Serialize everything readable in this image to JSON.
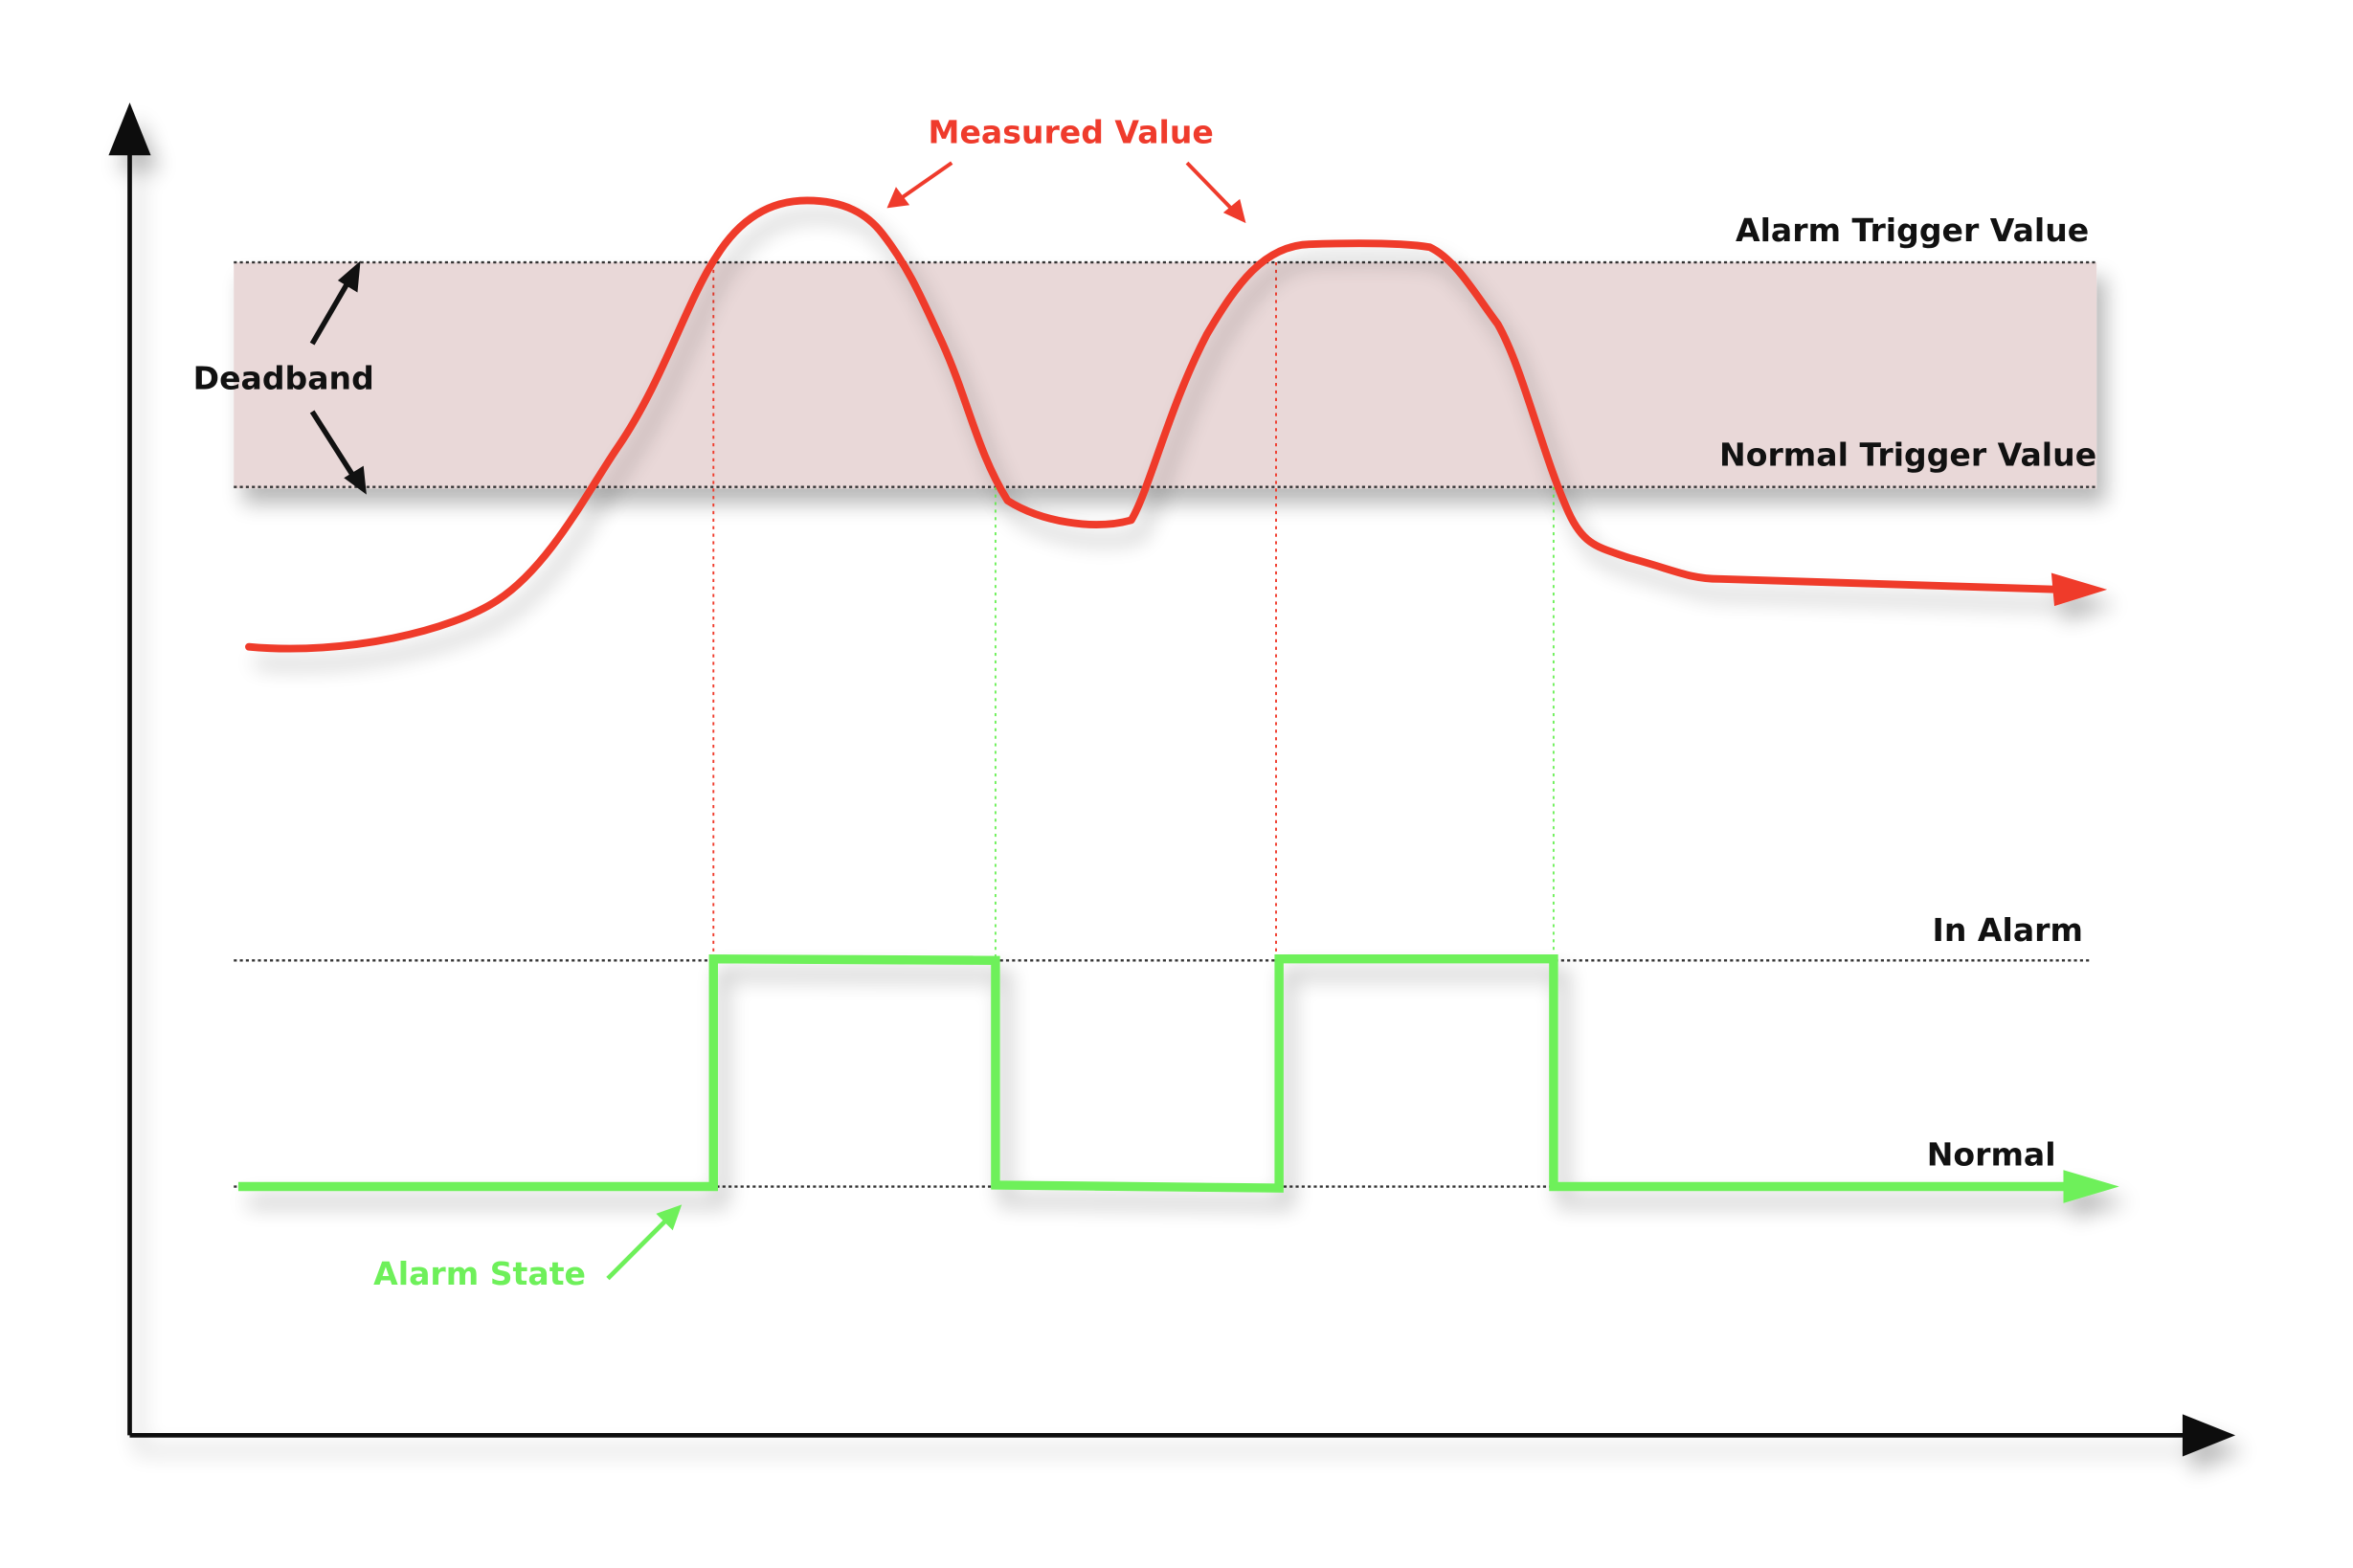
{
  "labels": {
    "measured_value": "Measured Value",
    "alarm_trigger_value": "Alarm Trigger Value",
    "normal_trigger_value": "Normal Trigger Value",
    "deadband": "Deadband",
    "in_alarm": "In Alarm",
    "normal": "Normal",
    "alarm_state": "Alarm State"
  },
  "colors": {
    "measured_value_line": "#ef3b2c",
    "alarm_state_line": "#6ef05a",
    "deadband_band": "#e9d8d8",
    "axis": "#111111",
    "reference_line": "#333333"
  }
}
